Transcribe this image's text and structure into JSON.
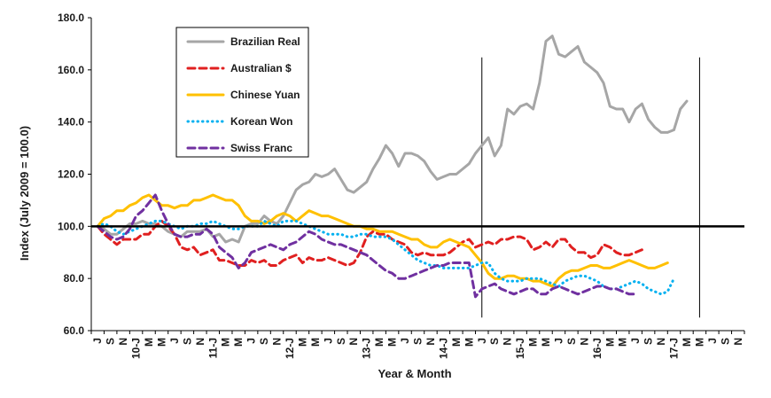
{
  "chart_data": {
    "type": "line",
    "xlabel": "Year & Month",
    "ylabel": "Index (July 2009 = 100.0)",
    "ylim": [
      60,
      180
    ],
    "yticks": [
      "60.0",
      "80.0",
      "100.0",
      "120.0",
      "140.0",
      "160.0",
      "180.0"
    ],
    "x_tick_labels": [
      "J",
      "S",
      "N",
      "10-J",
      "M",
      "M",
      "J",
      "S",
      "N",
      "11-J",
      "M",
      "M",
      "J",
      "S",
      "N",
      "12-J",
      "M",
      "M",
      "J",
      "S",
      "N",
      "13-J",
      "M",
      "M",
      "J",
      "S",
      "N",
      "14-J",
      "M",
      "M",
      "J",
      "S",
      "N",
      "15-J",
      "M",
      "M",
      "J",
      "S",
      "N",
      "16-J",
      "M",
      "M",
      "J",
      "S",
      "N",
      "17-J",
      "M",
      "M",
      "J",
      "S",
      "N"
    ],
    "reference_line": 100,
    "vertical_markers": [
      "2014-07",
      "2017-05"
    ],
    "legend_position": "top-left",
    "series": [
      {
        "name": "Brazilian Real",
        "color": "#a6a6a6",
        "style": "solid",
        "values": [
          100,
          99,
          97,
          97,
          99,
          101,
          101,
          102,
          101,
          101,
          100,
          98,
          97,
          96,
          98,
          98,
          98,
          99,
          96,
          97,
          94,
          95,
          94,
          100,
          101,
          101,
          104,
          102,
          101,
          104,
          109,
          114,
          116,
          117,
          120,
          119,
          120,
          122,
          118,
          114,
          113,
          115,
          117,
          122,
          126,
          131,
          128,
          123,
          128,
          128,
          127,
          125,
          121,
          118,
          119,
          120,
          120,
          122,
          124,
          128,
          131,
          134,
          127,
          131,
          145,
          143,
          146,
          147,
          145,
          155,
          171,
          173,
          166,
          165,
          167,
          169,
          163,
          161,
          159,
          155,
          146,
          145,
          145,
          140,
          145,
          147,
          141,
          138,
          136,
          136,
          137,
          145,
          148
        ]
      },
      {
        "name": "Australian $",
        "color": "#e02020",
        "style": "dashed",
        "values": [
          100,
          97,
          95,
          93,
          95,
          95,
          95,
          97,
          97,
          100,
          102,
          100,
          97,
          92,
          91,
          92,
          89,
          90,
          91,
          87,
          87,
          86,
          85,
          85,
          87,
          86,
          87,
          85,
          85,
          87,
          88,
          89,
          86,
          88,
          87,
          87,
          88,
          87,
          86,
          85,
          86,
          90,
          96,
          98,
          97,
          97,
          95,
          94,
          93,
          90,
          89,
          90,
          89,
          89,
          89,
          90,
          92,
          94,
          95,
          92,
          93,
          94,
          93,
          95,
          95,
          96,
          96,
          95,
          91,
          92,
          94,
          92,
          95,
          95,
          92,
          90,
          90,
          88,
          89,
          93,
          92,
          90,
          89,
          89,
          90,
          91
        ]
      },
      {
        "name": "Chinese Yuan",
        "color": "#ffc000",
        "style": "solid",
        "values": [
          100,
          103,
          104,
          106,
          106,
          108,
          109,
          111,
          112,
          110,
          108,
          108,
          107,
          108,
          108,
          110,
          110,
          111,
          112,
          111,
          110,
          110,
          108,
          104,
          102,
          102,
          101,
          102,
          104,
          105,
          104,
          102,
          104,
          106,
          105,
          104,
          104,
          103,
          102,
          101,
          100,
          100,
          99,
          99,
          98,
          98,
          98,
          97,
          96,
          95,
          95,
          93,
          92,
          92,
          94,
          95,
          94,
          93,
          92,
          89,
          86,
          82,
          80,
          80,
          81,
          81,
          80,
          80,
          79,
          79,
          78,
          77,
          80,
          82,
          83,
          83,
          84,
          85,
          85,
          84,
          84,
          85,
          86,
          87,
          86,
          85,
          84,
          84,
          85,
          86
        ]
      },
      {
        "name": "Korean Won",
        "color": "#00b0f0",
        "style": "dotted",
        "values": [
          100,
          101,
          100,
          98,
          97,
          98,
          99,
          100,
          101,
          102,
          102,
          101,
          100,
          99,
          100,
          100,
          101,
          101,
          102,
          101,
          100,
          99,
          99,
          100,
          100,
          100,
          102,
          101,
          100,
          102,
          102,
          102,
          101,
          100,
          99,
          98,
          97,
          97,
          97,
          96,
          96,
          97,
          97,
          96,
          96,
          96,
          95,
          93,
          91,
          89,
          87,
          86,
          85,
          85,
          84,
          84,
          84,
          84,
          84,
          85,
          86,
          86,
          82,
          80,
          79,
          79,
          79,
          80,
          80,
          80,
          79,
          78,
          77,
          79,
          80,
          81,
          81,
          80,
          79,
          77,
          76,
          76,
          77,
          78,
          79,
          78,
          76,
          75,
          74,
          75,
          80
        ]
      },
      {
        "name": "Swiss Franc",
        "color": "#7030a0",
        "style": "dashed",
        "values": [
          100,
          98,
          96,
          95,
          96,
          99,
          104,
          106,
          109,
          112,
          106,
          101,
          97,
          96,
          96,
          97,
          97,
          99,
          97,
          92,
          90,
          88,
          84,
          86,
          90,
          91,
          92,
          93,
          92,
          91,
          93,
          94,
          96,
          98,
          97,
          95,
          94,
          93,
          93,
          92,
          91,
          90,
          89,
          87,
          85,
          83,
          82,
          80,
          80,
          81,
          82,
          83,
          84,
          85,
          85,
          86,
          86,
          86,
          86,
          73,
          76,
          77,
          78,
          76,
          75,
          74,
          75,
          76,
          76,
          74,
          74,
          76,
          77,
          76,
          75,
          74,
          75,
          76,
          77,
          77,
          76,
          76,
          75,
          74,
          74
        ]
      }
    ]
  }
}
